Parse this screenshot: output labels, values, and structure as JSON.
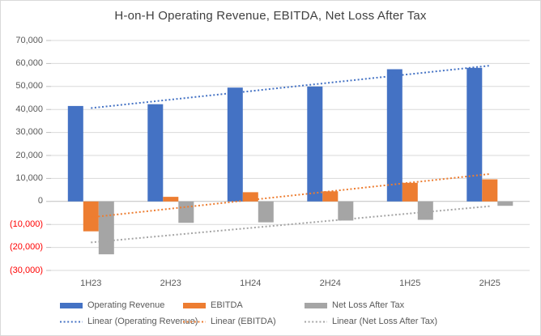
{
  "chart_data": {
    "type": "bar",
    "title": "H-on-H Operating Revenue, EBITDA, Net Loss After Tax",
    "categories": [
      "1H23",
      "2H23",
      "1H24",
      "2H24",
      "1H25",
      "2H25"
    ],
    "series": [
      {
        "name": "Operating Revenue",
        "color": "#4472C4",
        "values": [
          41500,
          42300,
          49500,
          50000,
          57500,
          58100
        ]
      },
      {
        "name": "EBITDA",
        "color": "#ED7D31",
        "values": [
          -13000,
          2000,
          4000,
          4400,
          8100,
          9600
        ]
      },
      {
        "name": "Net Loss After Tax",
        "color": "#A5A5A5",
        "values": [
          -23000,
          -9300,
          -9100,
          -8300,
          -8000,
          -1900
        ]
      }
    ],
    "trendlines": [
      {
        "name": "Linear (Operating Revenue)",
        "series_index": 0,
        "color": "#4472C4"
      },
      {
        "name": "Linear (EBITDA)",
        "series_index": 1,
        "color": "#ED7D31"
      },
      {
        "name": "Linear (Net Loss After Tax)",
        "series_index": 2,
        "color": "#A5A5A5"
      }
    ],
    "xlabel": "",
    "ylabel": "",
    "ylim": [
      -30000,
      70000
    ],
    "ytick_step": 10000,
    "yticks": [
      {
        "value": 70000,
        "label": "70,000"
      },
      {
        "value": 60000,
        "label": "60,000"
      },
      {
        "value": 50000,
        "label": "50,000"
      },
      {
        "value": 40000,
        "label": "40,000"
      },
      {
        "value": 30000,
        "label": "30,000"
      },
      {
        "value": 20000,
        "label": "20,000"
      },
      {
        "value": 10000,
        "label": "10,000"
      },
      {
        "value": 0,
        "label": "0"
      },
      {
        "value": -10000,
        "label": "(10,000)"
      },
      {
        "value": -20000,
        "label": "(20,000)"
      },
      {
        "value": -30000,
        "label": "(30,000)"
      }
    ],
    "grid": true,
    "legend_position": "bottom",
    "colors": {
      "axis_text": "#595959",
      "negative_tick_text": "#FF0000",
      "gridline": "#D9D9D9",
      "axis_line": "#BFBFBF",
      "title_text": "#404040",
      "chart_border": "#D9D9D9",
      "background": "#FFFFFF"
    }
  }
}
